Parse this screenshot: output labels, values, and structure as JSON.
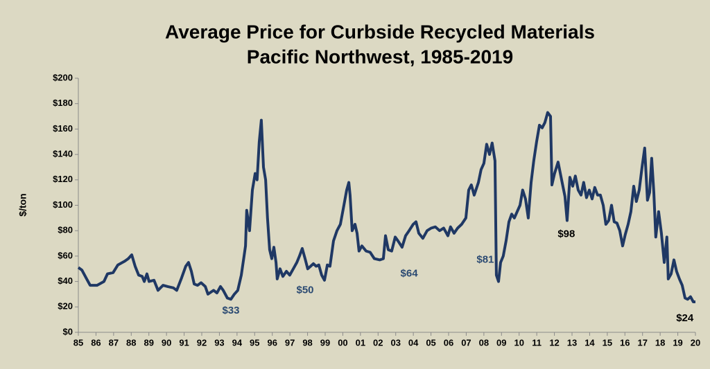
{
  "chart_data": {
    "type": "line",
    "title": "Average Price for Curbside Recycled Materials",
    "subtitle": "Pacific Northwest, 1985-2019",
    "y_label": "$/ton",
    "color": "#1f3864",
    "xlim": [
      1985,
      2020
    ],
    "ylim": [
      0,
      200
    ],
    "yticks": [
      {
        "value": 0,
        "label": "$0"
      },
      {
        "value": 20,
        "label": "$20"
      },
      {
        "value": 40,
        "label": "$40"
      },
      {
        "value": 60,
        "label": "$60"
      },
      {
        "value": 80,
        "label": "$80"
      },
      {
        "value": 100,
        "label": "$100"
      },
      {
        "value": 120,
        "label": "$120"
      },
      {
        "value": 140,
        "label": "$140"
      },
      {
        "value": 160,
        "label": "$160"
      },
      {
        "value": 180,
        "label": "$180"
      },
      {
        "value": 200,
        "label": "$200"
      }
    ],
    "xticks": [
      {
        "value": 1985,
        "label": "85"
      },
      {
        "value": 1986,
        "label": "86"
      },
      {
        "value": 1987,
        "label": "87"
      },
      {
        "value": 1988,
        "label": "88"
      },
      {
        "value": 1989,
        "label": "89"
      },
      {
        "value": 1990,
        "label": "90"
      },
      {
        "value": 1991,
        "label": "91"
      },
      {
        "value": 1992,
        "label": "92"
      },
      {
        "value": 1993,
        "label": "93"
      },
      {
        "value": 1994,
        "label": "94"
      },
      {
        "value": 1995,
        "label": "95"
      },
      {
        "value": 1996,
        "label": "96"
      },
      {
        "value": 1997,
        "label": "97"
      },
      {
        "value": 1998,
        "label": "98"
      },
      {
        "value": 1999,
        "label": "99"
      },
      {
        "value": 2000,
        "label": "00"
      },
      {
        "value": 2001,
        "label": "01"
      },
      {
        "value": 2002,
        "label": "02"
      },
      {
        "value": 2003,
        "label": "03"
      },
      {
        "value": 2004,
        "label": "04"
      },
      {
        "value": 2005,
        "label": "05"
      },
      {
        "value": 2006,
        "label": "06"
      },
      {
        "value": 2007,
        "label": "07"
      },
      {
        "value": 2008,
        "label": "08"
      },
      {
        "value": 2009,
        "label": "09"
      },
      {
        "value": 2010,
        "label": "10"
      },
      {
        "value": 2011,
        "label": "11"
      },
      {
        "value": 2012,
        "label": "12"
      },
      {
        "value": 2013,
        "label": "13"
      },
      {
        "value": 2014,
        "label": "14"
      },
      {
        "value": 2015,
        "label": "15"
      },
      {
        "value": 2016,
        "label": "16"
      },
      {
        "value": 2017,
        "label": "17"
      },
      {
        "value": 2018,
        "label": "18"
      },
      {
        "value": 2019,
        "label": "19"
      },
      {
        "value": 2020,
        "label": "20"
      }
    ],
    "x": [
      1985.0,
      1985.2,
      1985.47,
      1985.67,
      1986.06,
      1986.45,
      1986.65,
      1986.97,
      1987.24,
      1987.63,
      1987.83,
      1988.03,
      1988.22,
      1988.42,
      1988.62,
      1988.74,
      1988.89,
      1989.01,
      1989.29,
      1989.52,
      1989.8,
      1990.07,
      1990.39,
      1990.58,
      1990.86,
      1991.09,
      1991.25,
      1991.41,
      1991.57,
      1991.76,
      1991.96,
      1992.2,
      1992.35,
      1992.67,
      1992.86,
      1993.06,
      1993.22,
      1993.45,
      1993.65,
      1993.85,
      1994.04,
      1994.24,
      1994.4,
      1994.48,
      1994.55,
      1994.71,
      1994.87,
      1995.03,
      1995.14,
      1995.26,
      1995.38,
      1995.5,
      1995.62,
      1995.73,
      1995.85,
      1995.97,
      1996.09,
      1996.21,
      1996.28,
      1996.44,
      1996.6,
      1996.8,
      1996.99,
      1997.19,
      1997.39,
      1997.54,
      1997.7,
      1997.86,
      1998.01,
      1998.17,
      1998.33,
      1998.49,
      1998.64,
      1998.8,
      1998.96,
      1999.12,
      1999.27,
      1999.47,
      1999.67,
      1999.86,
      2000.06,
      2000.22,
      2000.34,
      2000.41,
      2000.53,
      2000.69,
      2000.81,
      2000.92,
      2001.08,
      2001.32,
      2001.55,
      2001.79,
      2002.1,
      2002.3,
      2002.42,
      2002.58,
      2002.77,
      2002.97,
      2003.13,
      2003.36,
      2003.56,
      2003.76,
      2003.99,
      2004.15,
      2004.31,
      2004.54,
      2004.78,
      2005.01,
      2005.25,
      2005.49,
      2005.72,
      2005.96,
      2006.11,
      2006.31,
      2006.51,
      2006.74,
      2006.98,
      2007.14,
      2007.29,
      2007.45,
      2007.69,
      2007.84,
      2008.0,
      2008.16,
      2008.32,
      2008.47,
      2008.63,
      2008.71,
      2008.83,
      2008.95,
      2009.1,
      2009.26,
      2009.42,
      2009.58,
      2009.73,
      2009.89,
      2010.05,
      2010.2,
      2010.36,
      2010.52,
      2010.68,
      2010.83,
      2010.99,
      2011.15,
      2011.31,
      2011.46,
      2011.62,
      2011.78,
      2011.86,
      2012.01,
      2012.21,
      2012.41,
      2012.6,
      2012.72,
      2012.88,
      2013.04,
      2013.19,
      2013.35,
      2013.51,
      2013.66,
      2013.82,
      2013.98,
      2014.14,
      2014.29,
      2014.45,
      2014.61,
      2014.77,
      2014.92,
      2015.08,
      2015.24,
      2015.39,
      2015.55,
      2015.71,
      2015.87,
      2016.02,
      2016.18,
      2016.34,
      2016.5,
      2016.65,
      2016.81,
      2016.97,
      2017.12,
      2017.28,
      2017.4,
      2017.52,
      2017.64,
      2017.75,
      2017.91,
      2018.07,
      2018.23,
      2018.38,
      2018.46,
      2018.62,
      2018.78,
      2018.93,
      2019.09,
      2019.25,
      2019.41,
      2019.56,
      2019.72,
      2019.88,
      2020.0
    ],
    "values": [
      51,
      49,
      42,
      37,
      37,
      40,
      46,
      47,
      53,
      56,
      58,
      61,
      52,
      45,
      44,
      40,
      46,
      40,
      41,
      33,
      37,
      36,
      35,
      33,
      43,
      52,
      55,
      48,
      38,
      37,
      39,
      36,
      30,
      33,
      31,
      36,
      33,
      27,
      26,
      30,
      33,
      45,
      60,
      68,
      96,
      80,
      112,
      125,
      120,
      150,
      167,
      130,
      120,
      90,
      65,
      58,
      67,
      55,
      42,
      50,
      44,
      48,
      45,
      50,
      55,
      60,
      66,
      58,
      50,
      52,
      54,
      52,
      53,
      45,
      41,
      53,
      52,
      72,
      80,
      85,
      100,
      112,
      118,
      108,
      80,
      85,
      78,
      64,
      68,
      64,
      63,
      58,
      57,
      58,
      76,
      65,
      64,
      75,
      72,
      67,
      76,
      80,
      85,
      87,
      78,
      74,
      80,
      82,
      83,
      80,
      82,
      76,
      83,
      78,
      82,
      85,
      90,
      112,
      116,
      108,
      118,
      128,
      133,
      148,
      140,
      149,
      135,
      45,
      40,
      55,
      60,
      72,
      87,
      93,
      90,
      95,
      100,
      112,
      105,
      90,
      118,
      135,
      150,
      163,
      161,
      165,
      173,
      170,
      116,
      125,
      134,
      120,
      107,
      88,
      122,
      115,
      123,
      112,
      108,
      118,
      106,
      112,
      105,
      114,
      108,
      108,
      100,
      85,
      88,
      100,
      87,
      86,
      80,
      68,
      77,
      85,
      95,
      115,
      103,
      112,
      130,
      145,
      104,
      110,
      137,
      110,
      75,
      95,
      78,
      55,
      75,
      42,
      46,
      57,
      48,
      42,
      37,
      27,
      26,
      28,
      24,
      24
    ],
    "annotations": [
      {
        "text": "$33",
        "x": 1993.65,
        "y": 17,
        "color": "#2b4a72"
      },
      {
        "text": "$50",
        "x": 1997.86,
        "y": 33,
        "color": "#2b4a72"
      },
      {
        "text": "$64",
        "x": 2003.76,
        "y": 46,
        "color": "#2b4a72"
      },
      {
        "text": "$81",
        "x": 2008.08,
        "y": 57,
        "color": "#2b4a72"
      },
      {
        "text": "$98",
        "x": 2012.68,
        "y": 77,
        "color": "#000000"
      },
      {
        "text": "$24",
        "x": 2019.4,
        "y": 11,
        "color": "#000000"
      }
    ]
  }
}
